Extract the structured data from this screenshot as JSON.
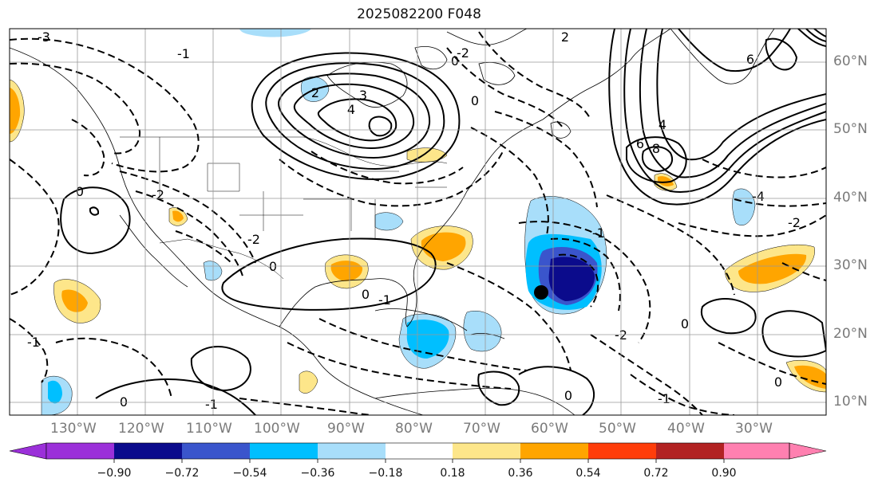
{
  "title": "2025082200 F048",
  "map": {
    "lat_labels": [
      "60°N",
      "50°N",
      "40°N",
      "30°N",
      "20°N",
      "10°N"
    ],
    "lon_labels": [
      "130°W",
      "120°W",
      "110°W",
      "100°W",
      "90°W",
      "80°W",
      "70°W",
      "60°W",
      "50°W",
      "40°W",
      "30°W"
    ],
    "storm_marker": "storm-center-dot"
  },
  "contour_labels": [
    {
      "text": "-3"
    },
    {
      "text": "2"
    },
    {
      "text": "-1"
    },
    {
      "text": "2"
    },
    {
      "text": "4"
    },
    {
      "text": "3"
    },
    {
      "text": "0"
    },
    {
      "text": "4"
    },
    {
      "text": "6"
    },
    {
      "text": "8"
    },
    {
      "text": "-2"
    },
    {
      "text": "0"
    },
    {
      "text": "-1"
    },
    {
      "text": "0"
    },
    {
      "text": "-2"
    },
    {
      "text": "-4"
    },
    {
      "text": "-2"
    },
    {
      "text": "0"
    },
    {
      "text": "-1"
    },
    {
      "text": "0"
    },
    {
      "text": "-2"
    },
    {
      "text": "-1"
    },
    {
      "text": "-1"
    },
    {
      "text": "0"
    },
    {
      "text": "-1"
    },
    {
      "text": "0"
    },
    {
      "text": "0"
    },
    {
      "text": "6"
    },
    {
      "text": "0"
    },
    {
      "text": "-2"
    }
  ],
  "colorbar": {
    "colors": [
      "#9b30d9",
      "#0b0b8c",
      "#3a55cc",
      "#00bfff",
      "#a8defa",
      "#ffffff",
      "#fde68a",
      "#ffa500",
      "#ff3d0a",
      "#b22222",
      "#ff80b0"
    ],
    "tick_labels": [
      "−0.90",
      "−0.72",
      "−0.54",
      "−0.36",
      "−0.18",
      "0.18",
      "0.36",
      "0.54",
      "0.72",
      "0.90"
    ]
  }
}
